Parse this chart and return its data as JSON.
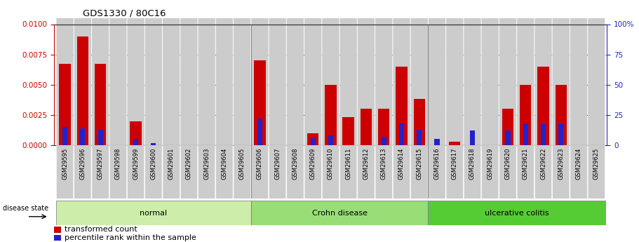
{
  "title": "GDS1330 / 80C16",
  "samples": [
    "GSM29595",
    "GSM29596",
    "GSM29597",
    "GSM29598",
    "GSM29599",
    "GSM29600",
    "GSM29601",
    "GSM29602",
    "GSM29603",
    "GSM29604",
    "GSM29605",
    "GSM29606",
    "GSM29607",
    "GSM29608",
    "GSM29609",
    "GSM29610",
    "GSM29611",
    "GSM29612",
    "GSM29613",
    "GSM29614",
    "GSM29615",
    "GSM29616",
    "GSM29617",
    "GSM29618",
    "GSM29619",
    "GSM29620",
    "GSM29621",
    "GSM29622",
    "GSM29623",
    "GSM29624",
    "GSM29625"
  ],
  "transformed_count": [
    0.0067,
    0.009,
    0.0067,
    0.0,
    0.002,
    0.0,
    0.0,
    0.0,
    0.0,
    0.0,
    0.0,
    0.007,
    0.0,
    0.0,
    0.001,
    0.005,
    0.0023,
    0.003,
    0.003,
    0.0065,
    0.0038,
    0.0,
    0.0003,
    0.0,
    0.0,
    0.003,
    0.005,
    0.0065,
    0.005,
    0.0,
    0.0
  ],
  "percentile_rank": [
    15,
    14,
    13,
    0,
    5,
    2,
    0,
    0,
    0,
    0,
    0,
    22,
    0,
    0,
    6,
    8,
    0,
    0,
    7,
    18,
    13,
    5,
    0,
    12,
    0,
    12,
    18,
    18,
    18,
    0,
    0
  ],
  "groups": [
    {
      "label": "normal",
      "start": 0,
      "end": 11,
      "color": "#cceeaa"
    },
    {
      "label": "Crohn disease",
      "start": 11,
      "end": 21,
      "color": "#99dd77"
    },
    {
      "label": "ulcerative colitis",
      "start": 21,
      "end": 31,
      "color": "#55cc33"
    }
  ],
  "ylim_left": [
    0,
    0.01
  ],
  "ylim_right": [
    0,
    100
  ],
  "yticks_left": [
    0,
    0.0025,
    0.005,
    0.0075,
    0.01
  ],
  "yticks_right": [
    0,
    25,
    50,
    75,
    100
  ],
  "bar_color_red": "#cc0000",
  "bar_color_blue": "#2222cc",
  "left_axis_color": "#cc0000",
  "right_axis_color": "#2222cc",
  "legend_red": "transformed count",
  "legend_blue": "percentile rank within the sample",
  "disease_state_label": "disease state",
  "col_bg_color": "#cccccc",
  "title_color": "#000000"
}
